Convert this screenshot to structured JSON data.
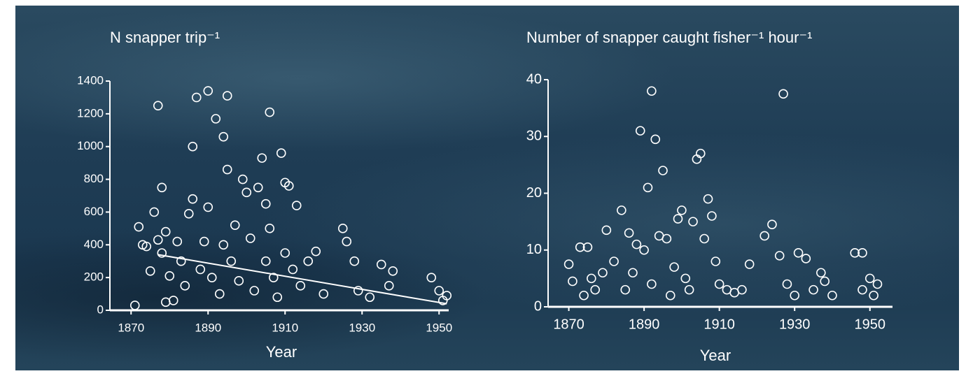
{
  "chart_data": [
    {
      "type": "scatter",
      "title": "N snapper trip⁻¹",
      "x_label": "Year",
      "color": "#ffffff",
      "xlim": [
        1864.5,
        1952.5
      ],
      "ylim": [
        0,
        1400
      ],
      "xticks": [
        1870,
        1890,
        1910,
        1930,
        1950
      ],
      "yticks": [
        0,
        200,
        400,
        600,
        800,
        1000,
        1200,
        1400
      ],
      "x": [
        1871,
        1872,
        1873,
        1874,
        1875,
        1876,
        1877,
        1877,
        1878,
        1878,
        1879,
        1879,
        1880,
        1881,
        1882,
        1883,
        1884,
        1885,
        1886,
        1886,
        1887,
        1888,
        1889,
        1890,
        1890,
        1891,
        1892,
        1893,
        1894,
        1894,
        1895,
        1895,
        1896,
        1897,
        1898,
        1899,
        1900,
        1901,
        1902,
        1903,
        1904,
        1905,
        1905,
        1906,
        1906,
        1907,
        1908,
        1909,
        1910,
        1910,
        1911,
        1912,
        1913,
        1914,
        1916,
        1918,
        1920,
        1925,
        1926,
        1928,
        1929,
        1932,
        1935,
        1937,
        1938,
        1948,
        1950,
        1951,
        1952
      ],
      "y": [
        30,
        510,
        400,
        390,
        240,
        600,
        1250,
        430,
        750,
        350,
        480,
        50,
        210,
        60,
        420,
        300,
        150,
        590,
        680,
        1000,
        1300,
        250,
        420,
        1340,
        630,
        200,
        1170,
        100,
        1060,
        400,
        1310,
        860,
        300,
        520,
        180,
        800,
        720,
        440,
        120,
        750,
        930,
        300,
        650,
        1210,
        500,
        200,
        80,
        960,
        780,
        350,
        760,
        250,
        640,
        150,
        300,
        360,
        100,
        500,
        420,
        300,
        120,
        80,
        280,
        150,
        240,
        200,
        120,
        60,
        90
      ],
      "trend": {
        "x": [
          1877,
          1952
        ],
        "y": [
          340,
          40
        ]
      }
    },
    {
      "type": "scatter",
      "title": "Number of snapper caught fisher⁻¹ hour⁻¹",
      "x_label": "Year",
      "color": "#ffffff",
      "xlim": [
        1864.5,
        1956
      ],
      "ylim": [
        0,
        40
      ],
      "xticks": [
        1870,
        1890,
        1910,
        1930,
        1950
      ],
      "yticks": [
        0,
        10,
        20,
        30,
        40
      ],
      "x": [
        1870,
        1871,
        1873,
        1874,
        1875,
        1876,
        1877,
        1879,
        1880,
        1882,
        1884,
        1885,
        1886,
        1887,
        1888,
        1889,
        1890,
        1891,
        1892,
        1892,
        1893,
        1894,
        1895,
        1896,
        1897,
        1898,
        1899,
        1900,
        1901,
        1902,
        1903,
        1904,
        1905,
        1906,
        1907,
        1908,
        1909,
        1910,
        1912,
        1914,
        1916,
        1918,
        1922,
        1924,
        1926,
        1927,
        1928,
        1930,
        1931,
        1933,
        1935,
        1937,
        1938,
        1940,
        1946,
        1948,
        1948,
        1950,
        1951,
        1952
      ],
      "y": [
        7.5,
        4.5,
        10.5,
        2,
        10.5,
        5,
        3,
        6,
        13.5,
        8,
        17,
        3,
        13,
        6,
        11,
        31,
        10,
        21,
        38,
        4,
        29.5,
        12.5,
        24,
        12,
        2,
        7,
        15.5,
        17,
        5,
        3,
        15,
        26,
        27,
        12,
        19,
        16,
        8,
        4,
        3,
        2.5,
        3,
        7.5,
        12.5,
        14.5,
        9,
        37.5,
        4,
        2,
        9.5,
        8.5,
        3,
        6,
        4.5,
        2,
        9.5,
        9.5,
        3,
        5,
        2,
        4
      ]
    }
  ]
}
